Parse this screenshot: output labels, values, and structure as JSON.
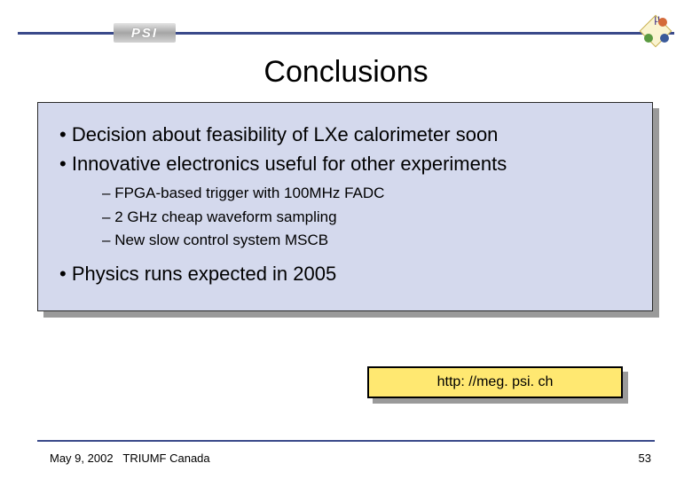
{
  "colors": {
    "line": "#3a4a8a",
    "content_bg": "#d4d9ed",
    "url_bg": "#ffe871",
    "shadow": "#9a9a9a",
    "border": "#2a2a2a"
  },
  "logo_psi": "PSI",
  "title": "Conclusions",
  "bullets": [
    "Decision about feasibility of LXe calorimeter soon",
    "Innovative electronics useful for other experiments"
  ],
  "sub_bullets": [
    "FPGA-based trigger with 100MHz FADC",
    "2 GHz cheap waveform sampling",
    "New slow control system MSCB"
  ],
  "bullet_last": "Physics runs expected in 2005",
  "url": "http: //meg. psi. ch",
  "footer": {
    "date": "May 9, 2002",
    "place": "TRIUMF Canada",
    "page": "53"
  },
  "typography": {
    "title_fontsize": 34,
    "bullet_fontsize": 22,
    "sub_fontsize": 17,
    "footer_fontsize": 13,
    "url_fontsize": 16
  }
}
